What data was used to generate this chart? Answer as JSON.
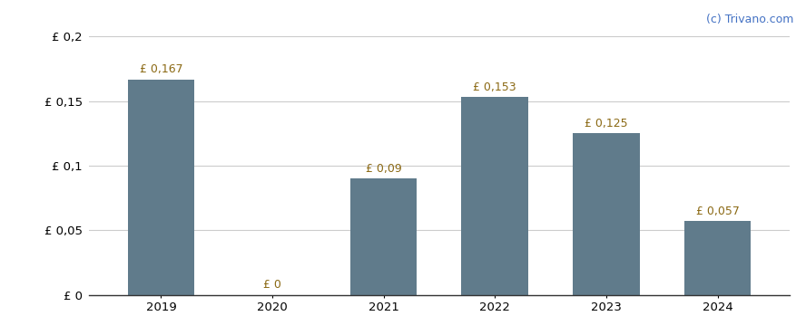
{
  "categories": [
    "2019",
    "2020",
    "2021",
    "2022",
    "2023",
    "2024"
  ],
  "values": [
    0.167,
    0.0,
    0.09,
    0.153,
    0.125,
    0.057
  ],
  "bar_color": "#607b8b",
  "label_color": "#8B6914",
  "yticks": [
    0,
    0.05,
    0.1,
    0.15,
    0.2
  ],
  "ytick_labels": [
    "£ 0",
    "£ 0,05",
    "£ 0,1",
    "£ 0,15",
    "£ 0,2"
  ],
  "ylim": [
    0,
    0.218
  ],
  "bar_labels": [
    "£ 0,167",
    "£ 0",
    "£ 0,09",
    "£ 0,153",
    "£ 0,125",
    "£ 0,057"
  ],
  "watermark": "(c) Trivano.com",
  "watermark_color": "#4472c4",
  "background_color": "#ffffff",
  "grid_color": "#cccccc",
  "label_fontsize": 9,
  "tick_fontsize": 9.5,
  "watermark_fontsize": 9
}
